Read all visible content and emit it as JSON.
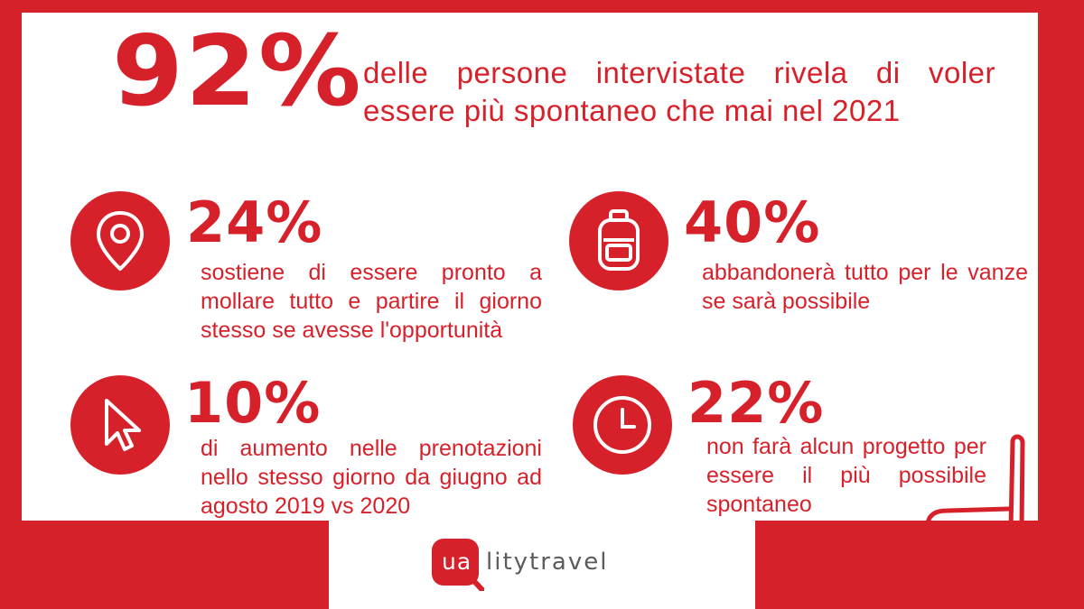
{
  "colors": {
    "brand_red": "#d7212a",
    "background": "#ffffff",
    "logo_gray": "#5b5b5b"
  },
  "headline": {
    "number": "92%",
    "text": "delle persone intervistate rivela di voler essere più spontaneo che mai nel 2021"
  },
  "stats": [
    {
      "icon": "location-pin-icon",
      "percent": "24%",
      "text": "sostiene di essere pronto a mollare tutto e partire il giorno stesso se avesse l'opportunità"
    },
    {
      "icon": "backpack-icon",
      "percent": "40%",
      "text": "abbandonerà tutto per le vanze - se sarà possibile"
    },
    {
      "icon": "cursor-icon",
      "percent": "10%",
      "text": "di aumento nelle prenotazioni nello stesso giorno da giugno ad agosto 2019 vs 2020"
    },
    {
      "icon": "clock-icon",
      "percent": "22%",
      "text": "non farà alcun progetto per essere il più possibile spontaneo"
    }
  ],
  "logo": {
    "mark_text": "ua",
    "wordmark": "litytravel"
  }
}
